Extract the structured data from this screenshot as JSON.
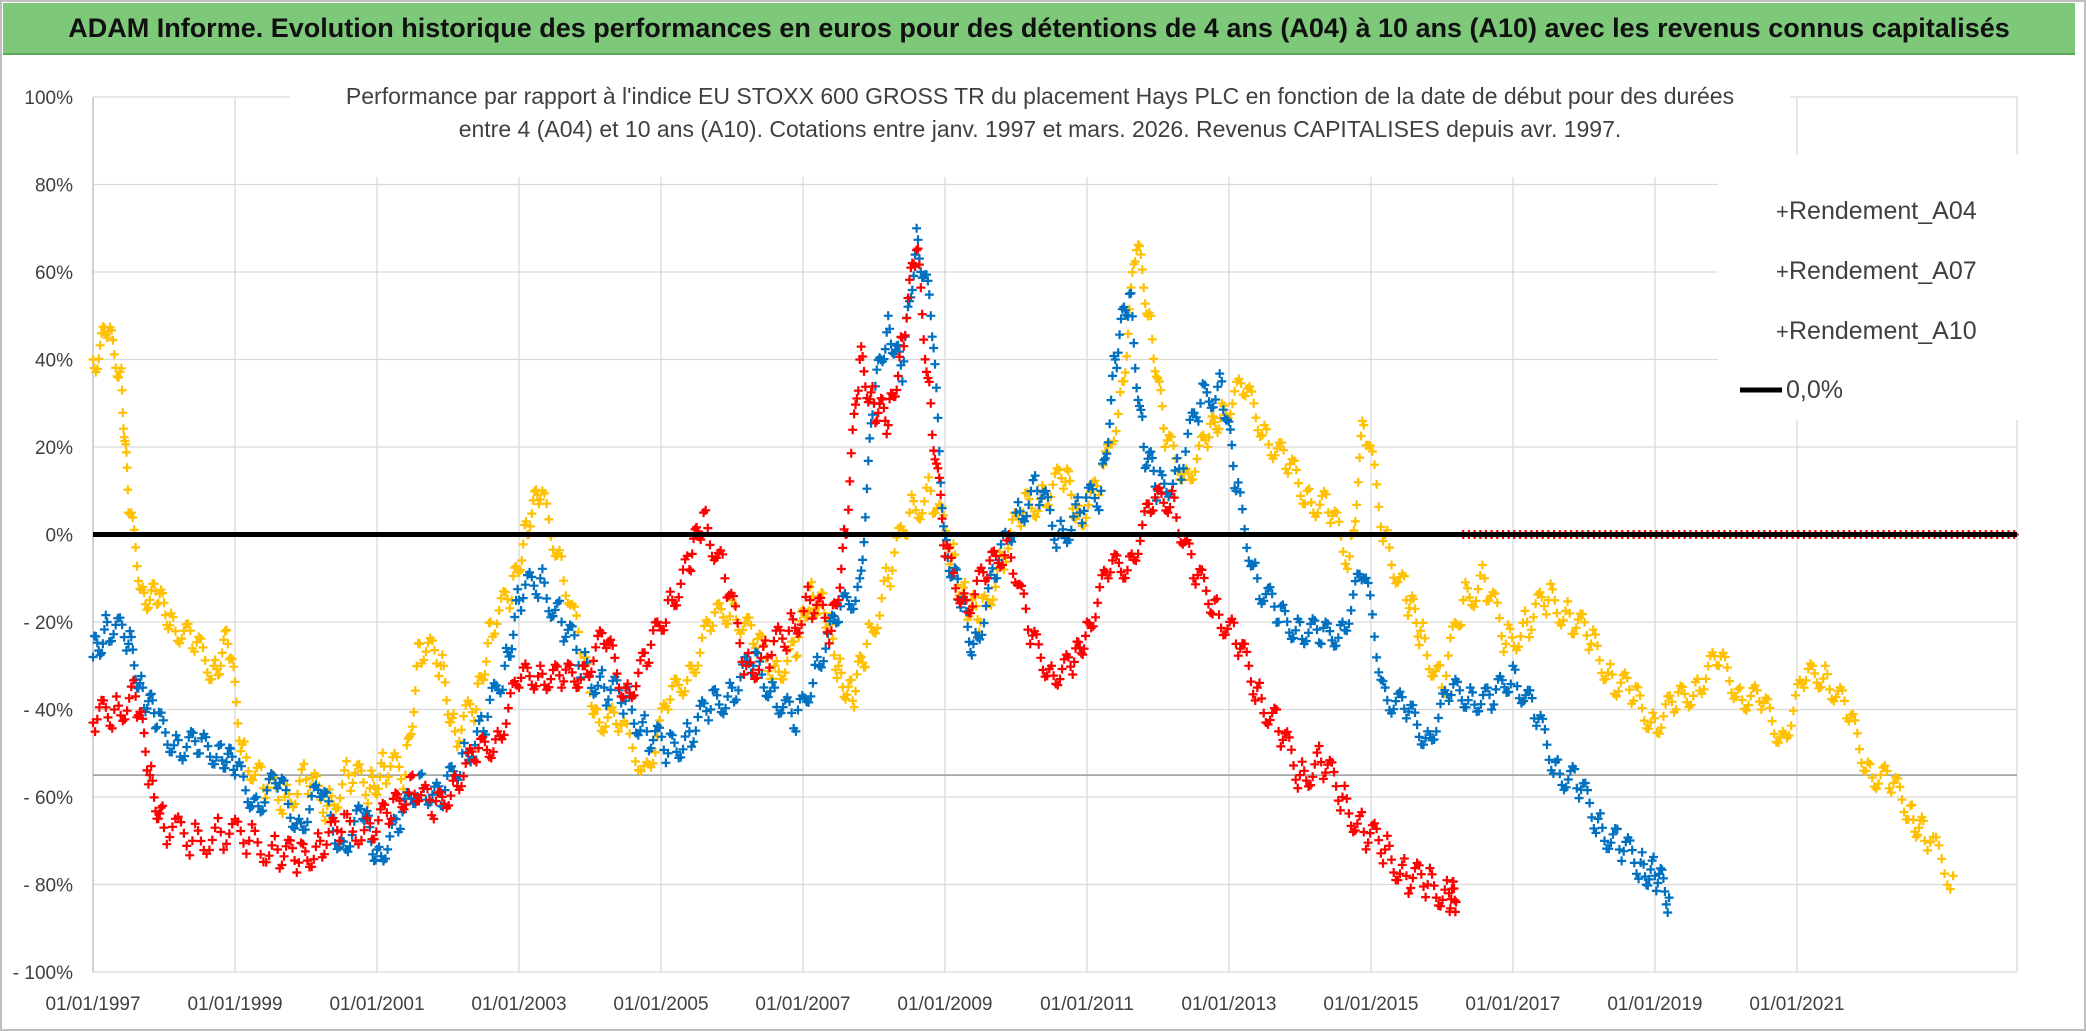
{
  "banner": {
    "title": "ADAM Informe. Evolution historique des performances en euros pour des détentions de 4 ans (A04) à 10 ans (A10) avec les revenus connus capitalisés"
  },
  "chart_data": {
    "type": "scatter",
    "title_line1": "Performance par rapport à l'indice EU STOXX 600 GROSS TR  du placement Hays PLC en fonction de la date de début pour des durées",
    "title_line2": "entre 4 (A04) et 10 ans (A10). Cotations entre janv. 1997 et mars. 2026. Revenus CAPITALISES depuis avr. 1997.",
    "xlabel": "",
    "ylabel": "",
    "xlim": [
      1997.0,
      2024.1
    ],
    "ylim": [
      -100,
      100
    ],
    "y_ticks": [
      100,
      80,
      60,
      40,
      20,
      0,
      -20,
      -40,
      -60,
      -80,
      -100
    ],
    "y_tick_labels": [
      "100%",
      "80%",
      "60%",
      "40%",
      "20%",
      "0%",
      "- 20%",
      "- 40%",
      "- 60%",
      "- 80%",
      "- 100%"
    ],
    "x_ticks": [
      1997,
      1999,
      2001,
      2003,
      2005,
      2007,
      2009,
      2011,
      2013,
      2015,
      2017,
      2019,
      2021
    ],
    "x_tick_labels": [
      "01/01/1997",
      "01/01/1999",
      "01/01/2001",
      "01/01/2003",
      "01/01/2005",
      "01/01/2007",
      "01/01/2009",
      "01/01/2011",
      "01/01/2013",
      "01/01/2015",
      "01/01/2017",
      "01/01/2019",
      "01/01/2021"
    ],
    "reference_line": {
      "name": "0,0%",
      "y": 0,
      "color": "#000000"
    },
    "extra_hline": -55,
    "legend_position": "top-right",
    "series": [
      {
        "name": "Rendement_A04",
        "color": "#FFC000",
        "x": [
          1997.0,
          1997.2,
          1997.4,
          1997.5,
          1997.7,
          1997.9,
          1998.1,
          1998.4,
          1998.7,
          1998.9,
          1999.1,
          1999.4,
          1999.7,
          2000.0,
          2000.3,
          2000.6,
          2000.9,
          2001.1,
          2001.4,
          2001.6,
          2001.9,
          2002.1,
          2002.4,
          2002.6,
          2002.9,
          2003.1,
          2003.3,
          2003.6,
          2003.9,
          2004.1,
          2004.4,
          2004.8,
          2005.1,
          2005.4,
          2005.7,
          2006.0,
          2006.3,
          2006.6,
          2006.9,
          2007.1,
          2007.3,
          2007.5,
          2007.7,
          2007.9,
          2008.2,
          2008.5,
          2008.8,
          2009.1,
          2009.3,
          2009.5,
          2009.8,
          2010.1,
          2010.4,
          2010.7,
          2010.9,
          2011.2,
          2011.5,
          2011.7,
          2011.9,
          2012.1,
          2012.4,
          2012.7,
          2012.9,
          2013.2,
          2013.5,
          2013.8,
          2014.1,
          2014.4,
          2014.7,
          2014.9,
          2015.2,
          2015.5,
          2015.7,
          2016.0,
          2016.3,
          2016.6,
          2016.9,
          2017.2,
          2017.5,
          2017.8,
          2018.1,
          2018.4,
          2018.7,
          2019.0,
          2019.3,
          2019.6,
          2019.9,
          2020.2,
          2020.5,
          2020.8,
          2021.1,
          2021.4,
          2021.7,
          2022.0,
          2022.3,
          2022.6,
          2022.8,
          2023.2,
          2023.6,
          2024.1
        ],
        "y": [
          40,
          45,
          38,
          5,
          -12,
          -16,
          -18,
          -26,
          -30,
          -25,
          -48,
          -58,
          -60,
          -56,
          -62,
          -55,
          -58,
          -53,
          -55,
          -25,
          -30,
          -45,
          -40,
          -20,
          -15,
          3,
          8,
          -5,
          -30,
          -40,
          -45,
          -52,
          -40,
          -30,
          -22,
          -15,
          -25,
          -30,
          -28,
          -12,
          -18,
          -30,
          -38,
          -25,
          -10,
          5,
          10,
          -5,
          -15,
          -20,
          -5,
          5,
          10,
          12,
          5,
          10,
          35,
          65,
          50,
          20,
          15,
          20,
          30,
          32,
          25,
          15,
          10,
          5,
          -5,
          25,
          0,
          -15,
          -22,
          -35,
          -15,
          -10,
          -25,
          -20,
          -15,
          -18,
          -25,
          -32,
          -38,
          -42,
          -40,
          -33,
          -30,
          -35,
          -40,
          -45,
          -35,
          -30,
          -42,
          -52,
          -58,
          -62,
          -70,
          -78,
          null,
          null
        ]
      },
      {
        "name": "Rendement_A07",
        "color": "#0070C0",
        "x": [
          1997.0,
          1997.2,
          1997.5,
          1997.7,
          1997.9,
          1998.2,
          1998.5,
          1998.8,
          1999.0,
          1999.3,
          1999.6,
          1999.9,
          2000.2,
          2000.5,
          2000.8,
          2001.0,
          2001.3,
          2001.6,
          2001.9,
          2002.2,
          2002.5,
          2002.8,
          2003.0,
          2003.3,
          2003.6,
          2003.9,
          2004.2,
          2004.5,
          2004.8,
          2005.1,
          2005.4,
          2005.7,
          2006.0,
          2006.3,
          2006.6,
          2006.9,
          2007.2,
          2007.5,
          2007.8,
          2008.0,
          2008.2,
          2008.4,
          2008.6,
          2008.8,
          2009.0,
          2009.2,
          2009.4,
          2009.7,
          2010.0,
          2010.3,
          2010.6,
          2010.9,
          2011.2,
          2011.4,
          2011.6,
          2011.8,
          2012.0,
          2012.3,
          2012.6,
          2012.9,
          2013.1,
          2013.4,
          2013.7,
          2014.0,
          2014.3,
          2014.6,
          2014.9,
          2015.2,
          2015.5,
          2015.8,
          2016.1,
          2016.4,
          2016.7,
          2017.0,
          2017.3,
          2017.6,
          2017.9,
          2018.2,
          2018.5,
          2018.8,
          2019.0,
          2019.2
        ],
        "y": [
          -28,
          -20,
          -25,
          -35,
          -44,
          -47,
          -50,
          -48,
          -55,
          -60,
          -58,
          -65,
          -60,
          -70,
          -65,
          -72,
          -68,
          -55,
          -62,
          -50,
          -45,
          -30,
          -15,
          -10,
          -20,
          -30,
          -35,
          -38,
          -45,
          -50,
          -45,
          -40,
          -35,
          -30,
          -35,
          -45,
          -28,
          -20,
          -10,
          30,
          50,
          35,
          70,
          50,
          0,
          -15,
          -25,
          -10,
          5,
          10,
          0,
          5,
          10,
          40,
          55,
          20,
          10,
          15,
          30,
          35,
          10,
          -10,
          -20,
          -20,
          -25,
          -20,
          -10,
          -35,
          -42,
          -45,
          -38,
          -35,
          -40,
          -30,
          -42,
          -52,
          -58,
          -65,
          -72,
          -75,
          -78,
          -83
        ]
      },
      {
        "name": "Rendement_A10",
        "color": "#FF0000",
        "x": [
          1997.0,
          1997.3,
          1997.6,
          1997.8,
          1998.0,
          1998.4,
          1998.8,
          1999.2,
          1999.6,
          1999.9,
          2000.2,
          2000.5,
          2000.9,
          2001.2,
          2001.5,
          2001.8,
          2002.1,
          2002.4,
          2002.7,
          2003.0,
          2003.3,
          2003.6,
          2003.9,
          2004.2,
          2004.5,
          2004.8,
          2005.1,
          2005.4,
          2005.6,
          2005.9,
          2006.2,
          2006.5,
          2006.8,
          2007.1,
          2007.4,
          2007.6,
          2007.8,
          2008.0,
          2008.2,
          2008.4,
          2008.6,
          2008.8,
          2009.0,
          2009.3,
          2009.6,
          2009.9,
          2010.2,
          2010.5,
          2010.8,
          2011.0,
          2011.3,
          2011.6,
          2011.9,
          2012.2,
          2012.5,
          2012.8,
          2013.1,
          2013.4,
          2013.7,
          2014.0,
          2014.3,
          2014.6,
          2014.9,
          2015.2,
          2015.5,
          2015.8,
          2016.1,
          2016.2
        ],
        "y": [
          -43,
          -40,
          -37,
          -55,
          -67,
          -70,
          -68,
          -70,
          -72,
          -75,
          -70,
          -68,
          -66,
          -65,
          -55,
          -65,
          -55,
          -52,
          -45,
          -35,
          -30,
          -35,
          -30,
          -25,
          -35,
          -30,
          -15,
          -8,
          5,
          -10,
          -30,
          -28,
          -22,
          -15,
          -22,
          0,
          40,
          30,
          25,
          45,
          65,
          30,
          -5,
          -15,
          -10,
          0,
          -25,
          -30,
          -32,
          -20,
          -10,
          -5,
          5,
          10,
          -10,
          -15,
          -25,
          -35,
          -45,
          -55,
          -52,
          -60,
          -68,
          -72,
          -78,
          -80,
          -82,
          -84
        ]
      }
    ]
  }
}
